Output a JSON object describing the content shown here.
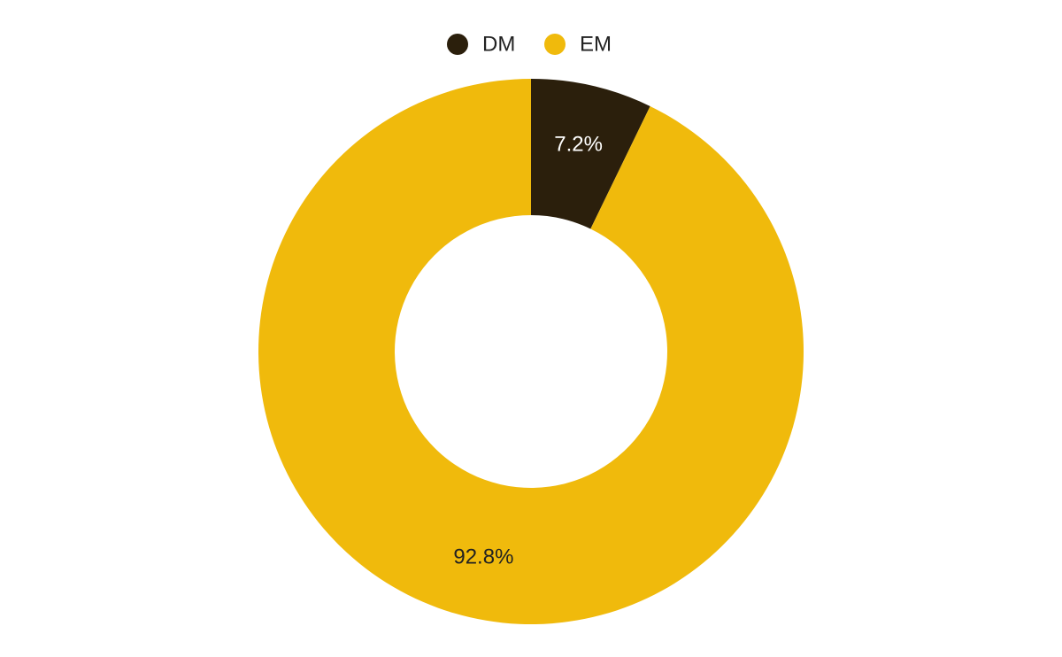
{
  "chart_data": {
    "type": "donut",
    "categories": [
      "DM",
      "EM"
    ],
    "values": [
      7.2,
      92.8
    ],
    "value_labels": [
      "7.2%",
      "92.8%"
    ],
    "colors": [
      "#2b1f0c",
      "#f0ba0c"
    ],
    "legend": "top"
  }
}
